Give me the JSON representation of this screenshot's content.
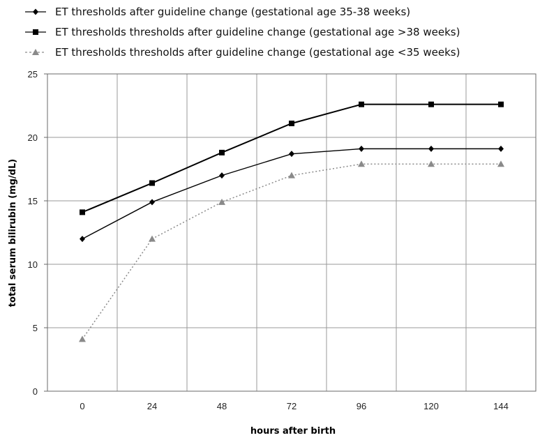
{
  "chart_data": {
    "type": "line",
    "title": "",
    "xlabel": "hours after birth",
    "ylabel": "total serum bilirubin (mg/dL)",
    "x": [
      0,
      24,
      48,
      72,
      96,
      120,
      144
    ],
    "xlim": [
      -12,
      156
    ],
    "ylim": [
      0,
      25
    ],
    "yticks": [
      0,
      5,
      10,
      15,
      20,
      25
    ],
    "xticks": [
      0,
      24,
      48,
      72,
      96,
      120,
      144
    ],
    "grid": true,
    "legend_position": "top",
    "series": [
      {
        "name": "ET thresholds after guideline change (gestational age 35-38 weeks)",
        "marker": "diamond",
        "line_style": "solid",
        "color": "#000000",
        "values": [
          12.0,
          14.9,
          17.0,
          18.7,
          19.1,
          19.1,
          19.1
        ]
      },
      {
        "name": "ET thresholds  thresholds after guideline change (gestational age >38 weeks)",
        "marker": "square",
        "line_style": "solid",
        "color": "#000000",
        "values": [
          14.1,
          16.4,
          18.8,
          21.1,
          22.6,
          22.6,
          22.6
        ]
      },
      {
        "name": "ET thresholds  thresholds after guideline change (gestational age <35 weeks)",
        "marker": "triangle",
        "line_style": "dotted",
        "color": "#8a8a8a",
        "values": [
          4.1,
          12.0,
          14.9,
          17.0,
          17.9,
          17.9,
          17.9
        ]
      }
    ]
  }
}
